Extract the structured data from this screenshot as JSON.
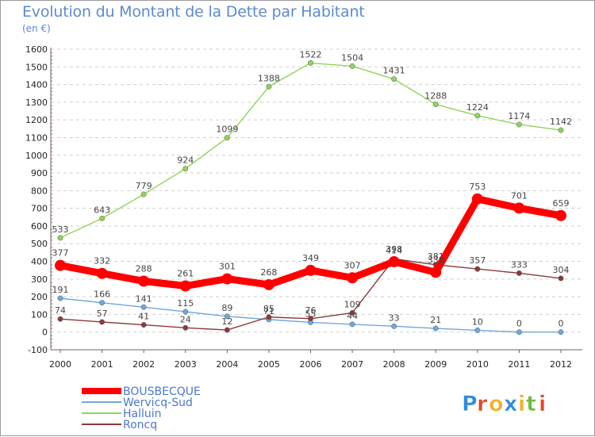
{
  "chart_data": {
    "type": "line",
    "title": "Evolution du Montant de la Dette par Habitant",
    "subtitle": "(en €)",
    "x": [
      "2000",
      "2001",
      "2002",
      "2003",
      "2004",
      "2005",
      "2006",
      "2007",
      "2008",
      "2009",
      "2010",
      "2011",
      "2012"
    ],
    "ylim": [
      -100,
      1600
    ],
    "yticks": [
      -100,
      0,
      100,
      200,
      300,
      400,
      500,
      600,
      700,
      800,
      900,
      1000,
      1100,
      1200,
      1300,
      1400,
      1500,
      1600
    ],
    "grid": "horizontal dashed",
    "legend_position": "bottom-left",
    "series": [
      {
        "name": "BOUSBECQUE",
        "color": "#ff0000",
        "values": [
          377,
          332,
          288,
          261,
          301,
          268,
          349,
          307,
          398,
          338,
          753,
          701,
          659
        ]
      },
      {
        "name": "Wervicq-Sud",
        "color": "#6fa8dc",
        "values": [
          191,
          166,
          141,
          115,
          89,
          71,
          55,
          44,
          33,
          21,
          10,
          0,
          0
        ]
      },
      {
        "name": "Halluin",
        "color": "#8fd45a",
        "values": [
          533,
          643,
          779,
          924,
          1099,
          1388,
          1522,
          1504,
          1431,
          1288,
          1224,
          1174,
          1142
        ]
      },
      {
        "name": "Roncq",
        "color": "#8b3a3a",
        "values": [
          74,
          57,
          41,
          24,
          12,
          85,
          76,
          109,
          414,
          381,
          357,
          333,
          304
        ]
      }
    ]
  },
  "logo": {
    "text": "Proxiti"
  }
}
